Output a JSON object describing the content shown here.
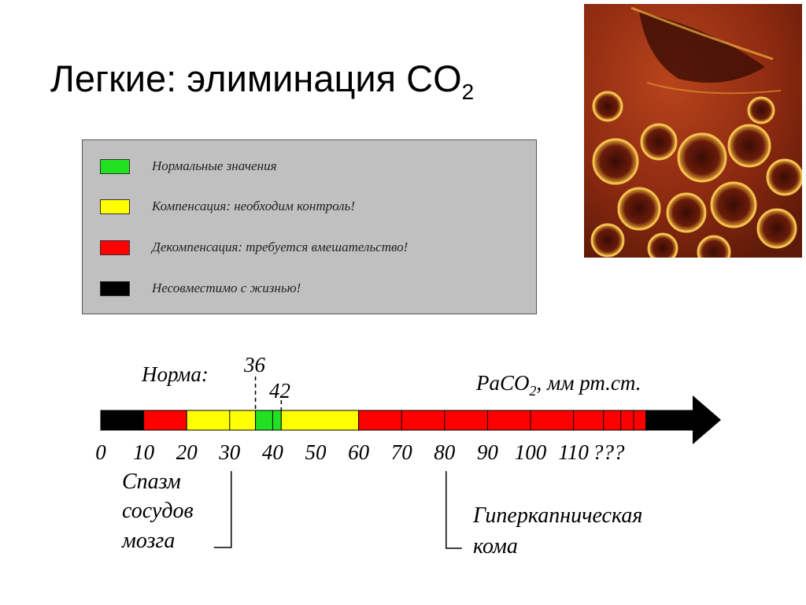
{
  "title": {
    "main": "Легкие: элиминация CO",
    "subscript": "2"
  },
  "photo": {
    "icon": "lung-tissue-micrograph"
  },
  "legend": [
    {
      "label": "Нормальные значения",
      "color": "#22e022"
    },
    {
      "label": "Компенсация: необходим контроль!",
      "color": "#ffff00"
    },
    {
      "label": "Декомпенсация: требуется вмешательство!",
      "color": "#ff0000"
    },
    {
      "label": "Несовместимо с жизнью!",
      "color": "#000000"
    }
  ],
  "scale": {
    "norm_label": "Норма:",
    "norm_low": "36",
    "norm_high": "42",
    "unit_main": "PaCO",
    "unit_sub": "2",
    "unit_rest": ", мм рт.ст.",
    "ticks": [
      "0",
      "10",
      "20",
      "30",
      "40",
      "50",
      "60",
      "70",
      "80",
      "90",
      "100",
      "110",
      "???"
    ],
    "segments": [
      {
        "from": 0,
        "to": 10,
        "color": "#000000"
      },
      {
        "from": 10,
        "to": 20,
        "color": "#ff0000"
      },
      {
        "from": 20,
        "to": 36,
        "color": "#ffff00"
      },
      {
        "from": 36,
        "to": 42,
        "color": "#22e022"
      },
      {
        "from": 42,
        "to": 60,
        "color": "#ffff00"
      },
      {
        "from": 60,
        "to": 127,
        "color": "#ff0000"
      },
      {
        "from": 127,
        "to": 140,
        "color": "#000000"
      }
    ],
    "annotation_left": [
      "Спазм",
      "сосудов",
      "мозга"
    ],
    "annotation_left_at": 30,
    "annotation_right": [
      "Гиперкапническая",
      "кома"
    ],
    "annotation_right_at": 80
  }
}
